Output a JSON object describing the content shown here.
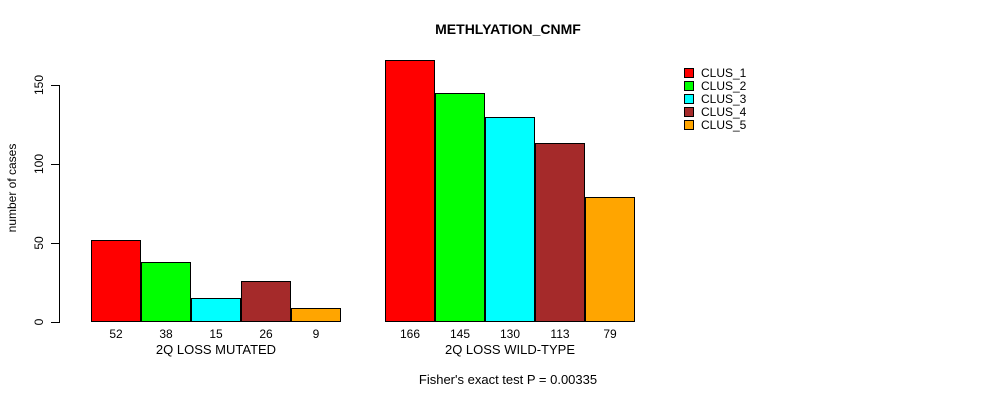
{
  "chart": {
    "title": "METHLYATION_CNMF",
    "ylabel": "number of cases",
    "footer": "Fisher's exact test P = 0.00335"
  },
  "chart_data": {
    "type": "bar",
    "title": "METHLYATION_CNMF",
    "xlabel": "",
    "ylabel": "number of cases",
    "ylim": [
      0,
      150
    ],
    "yticks": [
      0,
      50,
      100,
      150
    ],
    "grid": false,
    "legend_position": "right",
    "annotation": "Fisher's exact test P = 0.00335",
    "categories": [
      "2Q LOSS MUTATED",
      "2Q LOSS WILD-TYPE"
    ],
    "series": [
      {
        "name": "CLUS_1",
        "color": "#FF0000",
        "values": [
          52,
          166
        ]
      },
      {
        "name": "CLUS_2",
        "color": "#00FF00",
        "values": [
          38,
          145
        ]
      },
      {
        "name": "CLUS_3",
        "color": "#00FFFF",
        "values": [
          15,
          130
        ]
      },
      {
        "name": "CLUS_4",
        "color": "#A52A2A",
        "values": [
          26,
          113
        ]
      },
      {
        "name": "CLUS_5",
        "color": "#FFA500",
        "values": [
          9,
          79
        ]
      }
    ]
  }
}
